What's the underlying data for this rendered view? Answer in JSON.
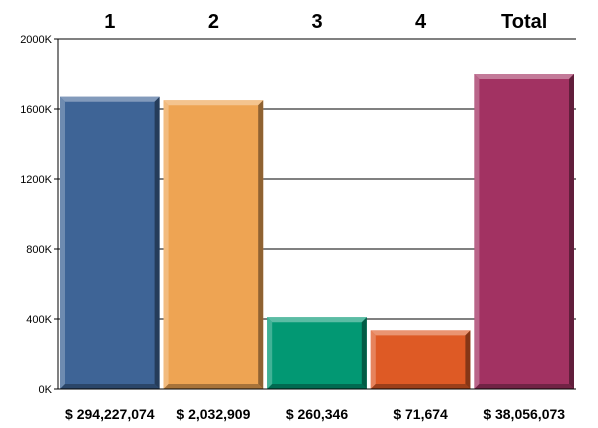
{
  "chart_data": {
    "type": "bar",
    "categories": [
      "1",
      "2",
      "3",
      "4",
      "Total"
    ],
    "values": [
      1670,
      1650,
      410,
      335,
      1800
    ],
    "value_unit": "K",
    "ylim": [
      0,
      2000
    ],
    "y_ticks": [
      0,
      400,
      800,
      1200,
      1600,
      2000
    ],
    "y_tick_labels": [
      "0K",
      "400K",
      "800K",
      "1200K",
      "1600K",
      "2000K"
    ],
    "bar_amount_labels": [
      "$ 294,227,074",
      "$ 2,032,909",
      "$ 260,346",
      "$ 71,674",
      "$ 38,056,073"
    ],
    "colors": [
      "#3E6496",
      "#EEA453",
      "#029873",
      "#DE5A25",
      "#A23262"
    ],
    "grid": true,
    "legend": "none",
    "title": "",
    "xlabel": "",
    "ylabel": ""
  }
}
